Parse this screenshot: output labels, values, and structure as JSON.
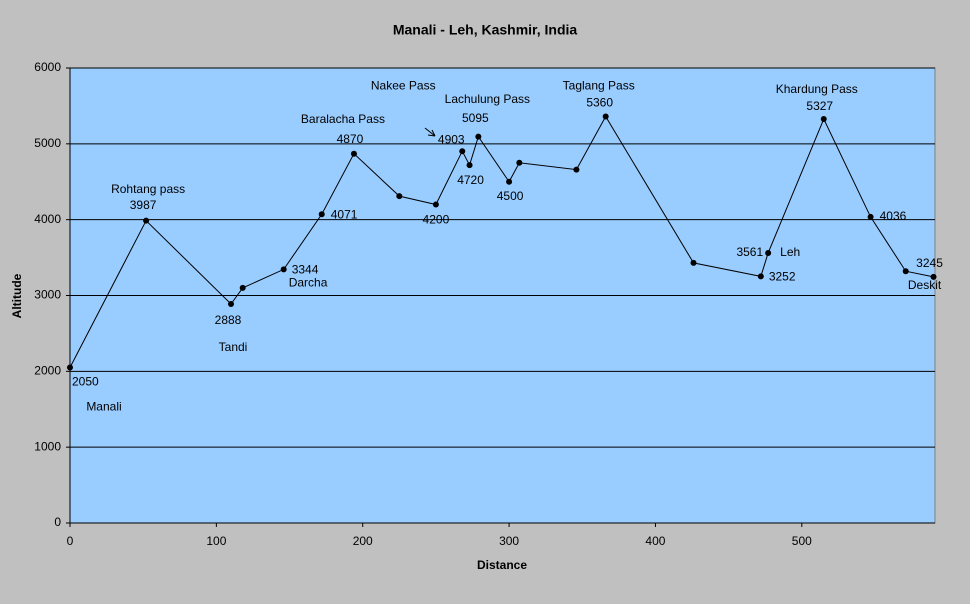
{
  "chart_data": {
    "type": "line",
    "title": "Manali - Leh, Kashmir, India",
    "x_label": "Distance",
    "y_label": "Altitude",
    "x": [
      0,
      52,
      110,
      118,
      146,
      172,
      194,
      225,
      250,
      268,
      273,
      279,
      300,
      307,
      346,
      366,
      426,
      472,
      477,
      515,
      547,
      571,
      590
    ],
    "series": [
      {
        "name": "Altitude",
        "color": "#000000",
        "values": [
          2050,
          3987,
          2888,
          3100,
          3344,
          4071,
          4870,
          4310,
          4200,
          4903,
          4720,
          5095,
          4500,
          4750,
          4660,
          5360,
          3430,
          3252,
          3561,
          5327,
          4036,
          3320,
          3245
        ]
      }
    ],
    "point_names": [
      "Manali",
      "Rohtang pass",
      "Tandi",
      null,
      "Darcha",
      null,
      "Baralacha Pass",
      null,
      null,
      "Nakee Pass",
      null,
      "Lachulung Pass",
      null,
      null,
      null,
      "Taglang Pass",
      null,
      null,
      "Leh",
      "Khardung Pass",
      null,
      null,
      "Deskit"
    ],
    "xlim": [
      0,
      591
    ],
    "xticks": [
      0,
      100,
      200,
      300,
      400,
      500
    ],
    "ylim": [
      0,
      6000
    ],
    "yticks": [
      0,
      1000,
      2000,
      3000,
      4000,
      5000,
      6000
    ],
    "grid": true,
    "plot_background": "#99ccff"
  }
}
